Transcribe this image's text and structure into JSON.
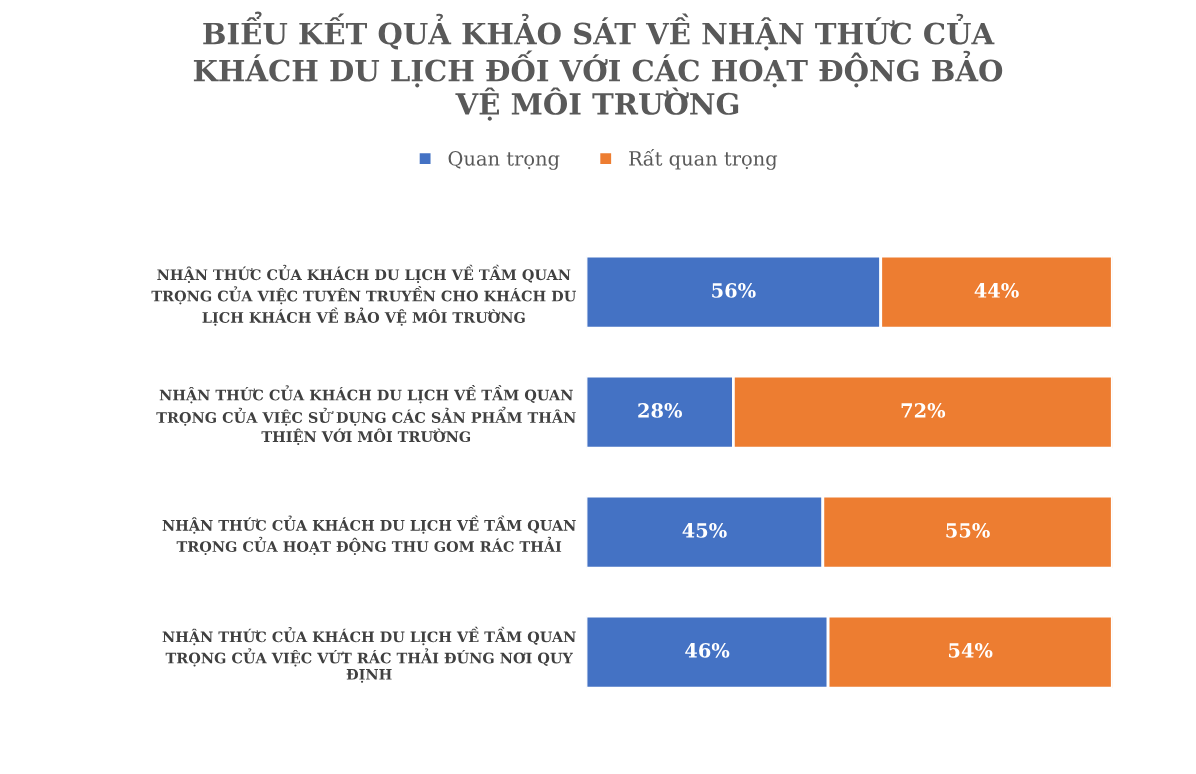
{
  "chart_data": {
    "type": "bar",
    "orientation": "horizontal",
    "stacked": true,
    "title": "BIỂU KẾT QUẢ KHẢO SÁT VỀ NHẬN THỨC CỦA\nKHÁCH DU LỊCH ĐỐI VỚI CÁC HOẠT ĐỘNG BẢO\nVỆ MÔI TRƯỜNG",
    "categories": [
      "NHẬN THỨC CỦA KHÁCH DU LỊCH VỀ TẦM QUAN\nTRỌNG CỦA VIỆC TUYÊN TRUYỀN CHO KHÁCH DU\nLỊCH KHÁCH VỀ BẢO VỆ MÔI TRƯỜNG",
      "NHẬN THỨC CỦA KHÁCH DU LỊCH VỀ TẦM QUAN\nTRỌNG CỦA VIỆC SỬ DỤNG CÁC SẢN PHẨM THÂN\nTHIỆN VỚI MÔI TRƯỜNG",
      "NHẬN THỨC CỦA KHÁCH DU LỊCH VỀ TẦM QUAN\nTRỌNG CỦA HOẠT ĐỘNG THU GOM RÁC THẢI",
      "NHẬN THỨC CỦA KHÁCH DU LỊCH VỀ TẦM QUAN\nTRỌNG CỦA VIỆC VỨT RÁC THẢI ĐÚNG NƠI QUY\nĐỊNH"
    ],
    "series": [
      {
        "name": "Quan trọng",
        "color": "#4472c4",
        "values": [
          56,
          28,
          45,
          46
        ],
        "value_labels": [
          "56%",
          "28%",
          "45%",
          "46%"
        ]
      },
      {
        "name": "Rất quan trọng",
        "color": "#ed7d31",
        "values": [
          44,
          72,
          55,
          54
        ],
        "value_labels": [
          "44%",
          "72%",
          "55%",
          "54%"
        ]
      }
    ],
    "xlim": [
      0,
      100
    ],
    "tick_labels": "y",
    "legend": "top"
  }
}
